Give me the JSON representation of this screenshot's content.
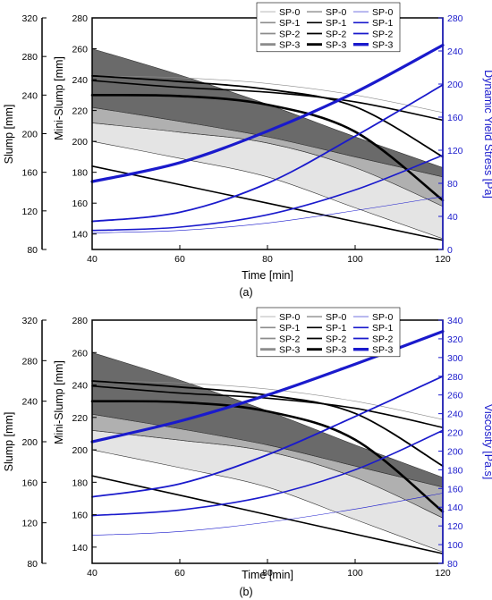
{
  "chart_data": [
    {
      "panel": "(a)",
      "type": "line",
      "xlabel": "Time [min]",
      "x_ticks": [
        "40",
        "60",
        "80",
        "100",
        "120"
      ],
      "xlim": [
        40,
        120
      ],
      "slump_axis": {
        "label": "Slump [mm]",
        "range": [
          80,
          320
        ],
        "ticks": [
          "80",
          "120",
          "160",
          "200",
          "240",
          "280",
          "320"
        ]
      },
      "mini_slump_axis": {
        "label": "Mini-Slump [mm]",
        "range": [
          130,
          280
        ],
        "ticks": [
          "140",
          "160",
          "180",
          "200",
          "220",
          "240",
          "260",
          "280"
        ]
      },
      "right_axis": {
        "label": "Dynamic Yield Stress [Pa]",
        "range": [
          0,
          280
        ],
        "ticks": [
          "0",
          "40",
          "80",
          "120",
          "160",
          "200",
          "240",
          "280"
        ],
        "color": "#1a1acc"
      },
      "legend_columns": [
        {
          "color": "#8c8c8c",
          "entries": [
            "SP-0",
            "SP-1",
            "SP-2",
            "SP-3"
          ]
        },
        {
          "color": "#000000",
          "entries": [
            "SP-0",
            "SP-1",
            "SP-2",
            "SP-3"
          ]
        },
        {
          "color": "#1a1acc",
          "entries": [
            "SP-0",
            "SP-1",
            "SP-2",
            "SP-3"
          ]
        }
      ],
      "bands": [
        {
          "fill": "#e4e4e4",
          "upper_mini_slump": [
            [
              40,
              212
            ],
            [
              60,
              206
            ],
            [
              80,
              199
            ],
            [
              100,
              183
            ],
            [
              120,
              158
            ]
          ],
          "lower_mini_slump": [
            [
              40,
              200
            ],
            [
              60,
              189
            ],
            [
              80,
              177
            ],
            [
              100,
              157
            ],
            [
              120,
              137
            ]
          ]
        },
        {
          "fill": "#b0b0b0",
          "upper_mini_slump": [
            [
              40,
              222
            ],
            [
              60,
              213
            ],
            [
              80,
              203
            ],
            [
              100,
              190
            ],
            [
              120,
              177
            ]
          ],
          "lower_mini_slump": [
            [
              40,
              212
            ],
            [
              60,
              206
            ],
            [
              80,
              199
            ],
            [
              100,
              183
            ],
            [
              120,
              158
            ]
          ]
        },
        {
          "fill": "#6a6a6a",
          "upper_mini_slump": [
            [
              40,
              260
            ],
            [
              60,
              243
            ],
            [
              80,
              224
            ],
            [
              100,
              203
            ],
            [
              120,
              183
            ]
          ],
          "lower_mini_slump": [
            [
              40,
              222
            ],
            [
              60,
              213
            ],
            [
              80,
              203
            ],
            [
              100,
              190
            ],
            [
              120,
              177
            ]
          ]
        }
      ],
      "series": [
        {
          "name": "SP-0",
          "axis": "slump",
          "color": "#8c8c8c",
          "width": 0.6,
          "points": [
            [
              40,
              260
            ],
            [
              60,
              258
            ],
            [
              80,
              252
            ],
            [
              100,
              240
            ],
            [
              120,
              222
            ]
          ]
        },
        {
          "name": "SP-1",
          "axis": "slump",
          "color": "#000000",
          "width": 1.6,
          "points": [
            [
              40,
              255
            ],
            [
              60,
              248
            ],
            [
              80,
              243
            ],
            [
              100,
              233
            ],
            [
              120,
              214
            ]
          ]
        },
        {
          "name": "SP-2",
          "axis": "slump",
          "color": "#000000",
          "width": 1.8,
          "points": [
            [
              40,
              260
            ],
            [
              60,
              254
            ],
            [
              80,
              246
            ],
            [
              100,
              228
            ],
            [
              120,
              176
            ]
          ]
        },
        {
          "name": "SP-3",
          "axis": "slump",
          "color": "#000000",
          "width": 2.6,
          "points": [
            [
              40,
              240
            ],
            [
              60,
              239
            ],
            [
              80,
              230
            ],
            [
              100,
              202
            ],
            [
              120,
              131
            ]
          ]
        },
        {
          "name": "SP-0",
          "axis": "mini_slump",
          "color": "#000000",
          "width": 1.6,
          "points": [
            [
              40,
              184
            ],
            [
              60,
              172
            ],
            [
              80,
              160
            ],
            [
              100,
              148
            ],
            [
              120,
              136
            ]
          ]
        },
        {
          "name": "SP-0",
          "axis": "right",
          "color": "#1a1acc",
          "width": 0.6,
          "points": [
            [
              40,
              20
            ],
            [
              60,
              23
            ],
            [
              80,
              32
            ],
            [
              100,
              47
            ],
            [
              120,
              64
            ]
          ]
        },
        {
          "name": "SP-1",
          "axis": "right",
          "color": "#1a1acc",
          "width": 1.6,
          "points": [
            [
              40,
              23
            ],
            [
              60,
              27
            ],
            [
              80,
              42
            ],
            [
              100,
              72
            ],
            [
              120,
              114
            ]
          ]
        },
        {
          "name": "SP-2",
          "axis": "right",
          "color": "#1a1acc",
          "width": 1.8,
          "points": [
            [
              40,
              34
            ],
            [
              60,
              45
            ],
            [
              80,
              80
            ],
            [
              100,
              137
            ],
            [
              120,
              199
            ]
          ]
        },
        {
          "name": "SP-3",
          "axis": "right",
          "color": "#1a1acc",
          "width": 3.2,
          "points": [
            [
              40,
              82
            ],
            [
              60,
              105
            ],
            [
              80,
              143
            ],
            [
              100,
              190
            ],
            [
              120,
              247
            ]
          ]
        }
      ]
    },
    {
      "panel": "(b)",
      "type": "line",
      "xlabel": "Time [min]",
      "x_ticks": [
        "40",
        "60",
        "80",
        "100",
        "120"
      ],
      "xlim": [
        40,
        120
      ],
      "slump_axis": {
        "label": "Slump [mm]",
        "range": [
          80,
          320
        ],
        "ticks": [
          "80",
          "120",
          "160",
          "200",
          "240",
          "280",
          "320"
        ]
      },
      "mini_slump_axis": {
        "label": "Mini-Slump [mm]",
        "range": [
          130,
          280
        ],
        "ticks": [
          "140",
          "160",
          "180",
          "200",
          "220",
          "240",
          "260",
          "280"
        ]
      },
      "right_axis": {
        "label": "Viscosity [Pa.s]",
        "range": [
          80,
          340
        ],
        "ticks": [
          "80",
          "100",
          "120",
          "140",
          "160",
          "180",
          "200",
          "220",
          "240",
          "260",
          "280",
          "300",
          "320",
          "340"
        ],
        "color": "#1a1acc"
      },
      "legend_columns": [
        {
          "color": "#8c8c8c",
          "entries": [
            "SP-0",
            "SP-1",
            "SP-2",
            "SP-3"
          ]
        },
        {
          "color": "#000000",
          "entries": [
            "SP-0",
            "SP-1",
            "SP-2",
            "SP-3"
          ]
        },
        {
          "color": "#1a1acc",
          "entries": [
            "SP-0",
            "SP-1",
            "SP-2",
            "SP-3"
          ]
        }
      ],
      "bands": [
        {
          "fill": "#e4e4e4",
          "upper_mini_slump": [
            [
              40,
              212
            ],
            [
              60,
              206
            ],
            [
              80,
              199
            ],
            [
              100,
              183
            ],
            [
              120,
              158
            ]
          ],
          "lower_mini_slump": [
            [
              40,
              200
            ],
            [
              60,
              189
            ],
            [
              80,
              177
            ],
            [
              100,
              157
            ],
            [
              120,
              137
            ]
          ]
        },
        {
          "fill": "#b0b0b0",
          "upper_mini_slump": [
            [
              40,
              222
            ],
            [
              60,
              213
            ],
            [
              80,
              203
            ],
            [
              100,
              190
            ],
            [
              120,
              177
            ]
          ],
          "lower_mini_slump": [
            [
              40,
              212
            ],
            [
              60,
              206
            ],
            [
              80,
              199
            ],
            [
              100,
              183
            ],
            [
              120,
              158
            ]
          ]
        },
        {
          "fill": "#6a6a6a",
          "upper_mini_slump": [
            [
              40,
              260
            ],
            [
              60,
              243
            ],
            [
              80,
              224
            ],
            [
              100,
              203
            ],
            [
              120,
              183
            ]
          ],
          "lower_mini_slump": [
            [
              40,
              222
            ],
            [
              60,
              213
            ],
            [
              80,
              203
            ],
            [
              100,
              190
            ],
            [
              120,
              177
            ]
          ]
        }
      ],
      "series": [
        {
          "name": "SP-0",
          "axis": "slump",
          "color": "#8c8c8c",
          "width": 0.6,
          "points": [
            [
              40,
              260
            ],
            [
              60,
              258
            ],
            [
              80,
              252
            ],
            [
              100,
              240
            ],
            [
              120,
              222
            ]
          ]
        },
        {
          "name": "SP-1",
          "axis": "slump",
          "color": "#000000",
          "width": 1.6,
          "points": [
            [
              40,
              255
            ],
            [
              60,
              248
            ],
            [
              80,
              243
            ],
            [
              100,
              233
            ],
            [
              120,
              214
            ]
          ]
        },
        {
          "name": "SP-2",
          "axis": "slump",
          "color": "#000000",
          "width": 1.8,
          "points": [
            [
              40,
              260
            ],
            [
              60,
              254
            ],
            [
              80,
              246
            ],
            [
              100,
              228
            ],
            [
              120,
              176
            ]
          ]
        },
        {
          "name": "SP-3",
          "axis": "slump",
          "color": "#000000",
          "width": 2.6,
          "points": [
            [
              40,
              240
            ],
            [
              60,
              239
            ],
            [
              80,
              230
            ],
            [
              100,
              202
            ],
            [
              120,
              131
            ]
          ]
        },
        {
          "name": "SP-0",
          "axis": "mini_slump",
          "color": "#000000",
          "width": 1.6,
          "points": [
            [
              40,
              184
            ],
            [
              60,
              172
            ],
            [
              80,
              160
            ],
            [
              100,
              148
            ],
            [
              120,
              136
            ]
          ]
        },
        {
          "name": "SP-0",
          "axis": "right",
          "color": "#1a1acc",
          "width": 0.6,
          "points": [
            [
              40,
              110
            ],
            [
              60,
              114
            ],
            [
              80,
              124
            ],
            [
              100,
              138
            ],
            [
              120,
              155
            ]
          ]
        },
        {
          "name": "SP-1",
          "axis": "right",
          "color": "#1a1acc",
          "width": 1.6,
          "points": [
            [
              40,
              131
            ],
            [
              60,
              137
            ],
            [
              80,
              152
            ],
            [
              100,
              180
            ],
            [
              120,
              222
            ]
          ]
        },
        {
          "name": "SP-2",
          "axis": "right",
          "color": "#1a1acc",
          "width": 1.8,
          "points": [
            [
              40,
              151
            ],
            [
              60,
              165
            ],
            [
              80,
              196
            ],
            [
              100,
              237
            ],
            [
              120,
              280
            ]
          ]
        },
        {
          "name": "SP-3",
          "axis": "right",
          "color": "#1a1acc",
          "width": 3.2,
          "points": [
            [
              40,
              210
            ],
            [
              60,
              232
            ],
            [
              80,
              260
            ],
            [
              100,
              293
            ],
            [
              120,
              328
            ]
          ]
        }
      ]
    }
  ]
}
